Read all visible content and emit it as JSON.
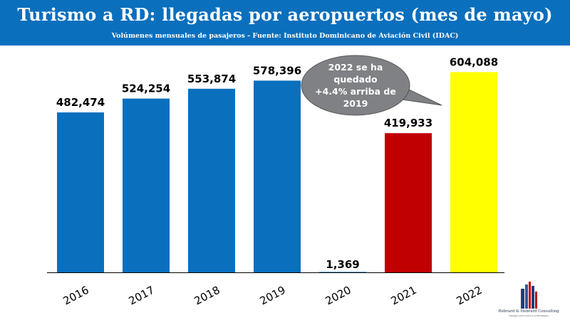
{
  "header": {
    "title": "Turismo a RD: llegadas por aeropuertos (mes de mayo)",
    "subtitle": "Volúmenes mensuales de pasajeros - Fuente: Instituto Dominicano de Aviación Civil (IDAC)"
  },
  "callout": {
    "lines": [
      "2022 se ha",
      "quedado",
      "+4.4% arriba de",
      "2019"
    ],
    "fill": "#7f8184"
  },
  "logo": {
    "name": "Hebrard & Hebrard Consulting",
    "tagline": "Inteligencia Económica & Estratégica"
  },
  "chart_data": {
    "type": "bar",
    "categories": [
      "2016",
      "2017",
      "2018",
      "2019",
      "2020",
      "2021",
      "2022"
    ],
    "values": [
      482474,
      524254,
      553874,
      578396,
      1369,
      419933,
      604088
    ],
    "data_labels": [
      "482,474",
      "524,254",
      "553,874",
      "578,396",
      "1,369",
      "419,933",
      "604,088"
    ],
    "colors": [
      "#0a6fbd",
      "#0a6fbd",
      "#0a6fbd",
      "#0a6fbd",
      "#0a6fbd",
      "#c00000",
      "#ffff00"
    ],
    "title": "",
    "xlabel": "",
    "ylabel": "",
    "ylim": [
      0,
      650000
    ],
    "grid": false,
    "legend": "none"
  }
}
